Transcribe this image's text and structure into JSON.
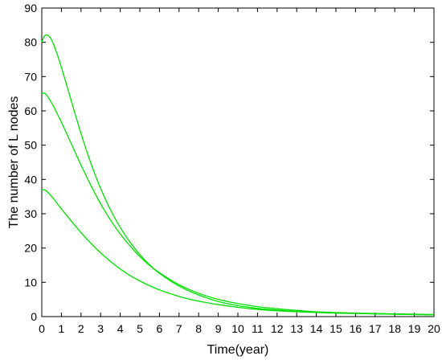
{
  "chart_data": {
    "type": "line",
    "title": "",
    "xlabel": "Time(year)",
    "ylabel": "The number of L nodes",
    "xlim": [
      0,
      20
    ],
    "ylim": [
      0,
      90
    ],
    "xticks": [
      0,
      1,
      2,
      3,
      4,
      5,
      6,
      7,
      8,
      9,
      10,
      11,
      12,
      13,
      14,
      15,
      16,
      17,
      18,
      19,
      20
    ],
    "yticks": [
      0,
      10,
      20,
      30,
      40,
      50,
      60,
      70,
      80,
      90
    ],
    "grid": false,
    "legend": "none",
    "series_color": "#00e000",
    "series": [
      {
        "x": [
          0,
          0.1,
          0.2,
          0.3,
          0.4,
          0.5,
          0.6,
          0.8,
          1,
          1.2,
          1.5,
          2,
          2.5,
          3,
          3.5,
          4,
          4.5,
          5,
          5.5,
          6,
          7,
          8,
          9,
          10,
          11,
          12,
          13,
          14,
          15,
          16,
          17,
          18,
          19,
          20
        ],
        "values": [
          80,
          81.5,
          82.1,
          82.1,
          81.6,
          80.7,
          79.4,
          76.3,
          72.7,
          68.9,
          63.0,
          53.4,
          44.8,
          37.4,
          31.2,
          26.0,
          21.7,
          18.1,
          15.1,
          12.6,
          8.9,
          6.3,
          4.4,
          3.2,
          2.4,
          1.9,
          1.5,
          1.3,
          1.1,
          0.9,
          0.8,
          0.7,
          0.6,
          0.5
        ]
      },
      {
        "x": [
          0,
          0.1,
          0.2,
          0.3,
          0.4,
          0.6,
          0.8,
          1,
          1.5,
          2,
          2.5,
          3,
          3.5,
          4,
          4.5,
          5,
          5.5,
          6,
          7,
          8,
          9,
          10,
          11,
          12,
          13,
          14,
          15,
          16,
          17,
          18,
          19,
          20
        ],
        "values": [
          65,
          65.2,
          64.9,
          64.2,
          63.3,
          61.3,
          59.0,
          56.7,
          50.5,
          44.2,
          38.3,
          32.9,
          28.2,
          24.1,
          20.6,
          17.5,
          14.9,
          12.8,
          9.3,
          6.8,
          5.0,
          3.8,
          2.9,
          2.3,
          1.8,
          1.4,
          1.2,
          1.0,
          0.9,
          0.8,
          0.7,
          0.6
        ]
      },
      {
        "x": [
          0,
          0.1,
          0.2,
          0.3,
          0.4,
          0.6,
          0.8,
          1,
          1.5,
          2,
          2.5,
          3,
          3.5,
          4,
          4.5,
          5,
          5.5,
          6,
          7,
          8,
          9,
          10,
          11,
          12,
          13,
          14,
          15,
          16,
          17,
          18,
          19,
          20
        ],
        "values": [
          37,
          37.0,
          36.8,
          36.3,
          35.7,
          34.4,
          32.9,
          31.4,
          27.9,
          24.5,
          21.4,
          18.6,
          16.1,
          13.9,
          12.0,
          10.4,
          9.0,
          7.8,
          5.9,
          4.5,
          3.5,
          2.7,
          2.1,
          1.7,
          1.4,
          1.2,
          1.0,
          0.9,
          0.8,
          0.7,
          0.6,
          0.5
        ]
      }
    ]
  }
}
